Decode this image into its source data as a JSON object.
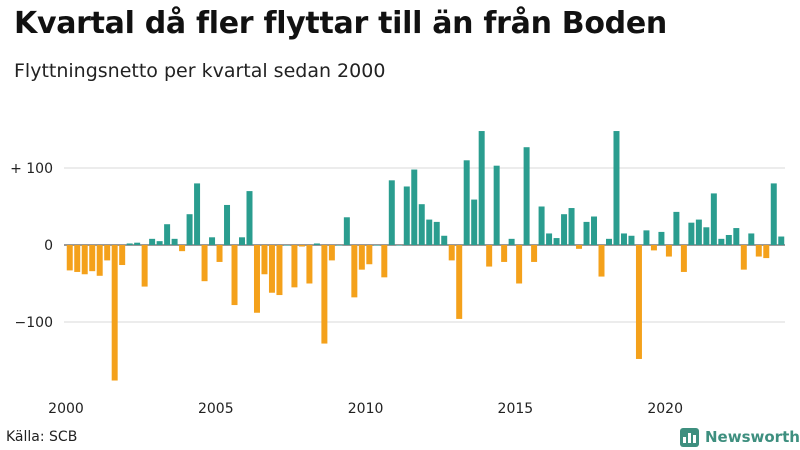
{
  "header": {
    "title": "Kvartal då fler flyttar till än från Boden",
    "subtitle": "Flyttningsnetto per kvartal sedan 2000"
  },
  "footer": {
    "source": "Källa: SCB",
    "brand": "Newsworthy",
    "brand_icon": "newsworthy-logo-icon"
  },
  "colors": {
    "positive": "#2a9d8f",
    "negative": "#f4a11b",
    "grid": "#d9d9d9"
  },
  "chart_data": {
    "type": "bar",
    "title": "Kvartal då fler flyttar till än från Boden",
    "subtitle": "Flyttningsnetto per kvartal sedan 2000",
    "xlabel": "",
    "ylabel": "",
    "start_year": 2000,
    "quarters_per_year": 4,
    "ylim": [
      -180,
      155
    ],
    "yticks": [
      {
        "value": 100,
        "label": "+ 100"
      },
      {
        "value": 0,
        "label": "0"
      },
      {
        "value": -100,
        "label": "−100"
      }
    ],
    "xticks": [
      {
        "value": 2000,
        "label": "2000"
      },
      {
        "value": 2005,
        "label": "2005"
      },
      {
        "value": 2010,
        "label": "2010"
      },
      {
        "value": 2015,
        "label": "2015"
      },
      {
        "value": 2020,
        "label": "2020"
      }
    ],
    "grid": true,
    "values": [
      -33,
      -35,
      -38,
      -34,
      -40,
      -20,
      -176,
      -26,
      2,
      3,
      -54,
      8,
      5,
      27,
      8,
      -8,
      40,
      80,
      -47,
      10,
      -22,
      52,
      -78,
      10,
      70,
      -88,
      -38,
      -62,
      -65,
      0,
      -55,
      -2,
      -50,
      2,
      -128,
      -20,
      0,
      36,
      -68,
      -32,
      -25,
      0,
      -42,
      84,
      0,
      76,
      98,
      53,
      33,
      30,
      12,
      -20,
      -96,
      110,
      59,
      148,
      -28,
      103,
      -22,
      8,
      -50,
      127,
      -22,
      50,
      15,
      9,
      40,
      48,
      -5,
      30,
      37,
      -41,
      8,
      148,
      15,
      12,
      -148,
      19,
      -7,
      17,
      -15,
      43,
      -35,
      29,
      33,
      23,
      67,
      8,
      13,
      22,
      -32,
      15,
      -15,
      -17,
      80,
      11
    ]
  }
}
